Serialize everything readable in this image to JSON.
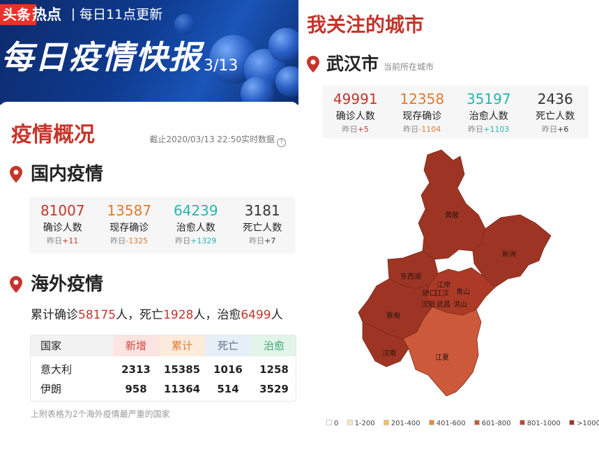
{
  "header": {
    "brand_logo": "头条",
    "brand_name": "热点",
    "tagline": "每日11点更新",
    "banner_title": "每日疫情快报",
    "date": "3/13"
  },
  "overview": {
    "title": "疫情概况",
    "note": "截止2020/03/13 22:50实时数据",
    "help_glyph": "?"
  },
  "domestic": {
    "title": "国内疫情",
    "stats": [
      {
        "value": "81007",
        "label": "确诊人数",
        "yesterday_prefix": "昨日",
        "delta": "+11",
        "color": "#c4352b"
      },
      {
        "value": "13587",
        "label": "现存确诊",
        "yesterday_prefix": "昨日",
        "delta": "-1325",
        "color": "#e07a2f"
      },
      {
        "value": "64239",
        "label": "治愈人数",
        "yesterday_prefix": "昨日",
        "delta": "+1329",
        "color": "#26b5b0"
      },
      {
        "value": "3181",
        "label": "死亡人数",
        "yesterday_prefix": "昨日",
        "delta": "+7",
        "color": "#333333"
      }
    ]
  },
  "overseas": {
    "title": "海外疫情",
    "line": {
      "p1": "累计确诊",
      "confirmed": "58175",
      "p2": "人，死亡",
      "deaths": "1928",
      "p3": "人，治愈",
      "cured": "6499",
      "p4": "人"
    },
    "table": {
      "headers": [
        "国家",
        "新增",
        "累计",
        "死亡",
        "治愈"
      ],
      "rows": [
        {
          "country": "意大利",
          "new": "2313",
          "total": "15385",
          "deaths": "1016",
          "cured": "1258"
        },
        {
          "country": "伊朗",
          "new": "958",
          "total": "11364",
          "deaths": "514",
          "cured": "3529"
        }
      ]
    },
    "note": "上附表格为2个海外疫情最严重的国家"
  },
  "city": {
    "section_title": "我关注的城市",
    "name": "武汉市",
    "subtitle": "当前所在城市",
    "stats": [
      {
        "value": "49991",
        "label": "确诊人数",
        "yesterday_prefix": "昨日",
        "delta": "+5",
        "color": "#c4352b"
      },
      {
        "value": "12358",
        "label": "现存确诊",
        "yesterday_prefix": "昨日",
        "delta": "-1104",
        "color": "#e07a2f"
      },
      {
        "value": "35197",
        "label": "治愈人数",
        "yesterday_prefix": "昨日",
        "delta": "+1103",
        "color": "#26b5b0"
      },
      {
        "value": "2436",
        "label": "死亡人数",
        "yesterday_prefix": "昨日",
        "delta": "+6",
        "color": "#333333"
      }
    ]
  },
  "map": {
    "districts": [
      "黄陂",
      "新洲",
      "东西湖",
      "江岸",
      "硚口",
      "江汉",
      "青山",
      "汉阳",
      "武昌",
      "洪山",
      "蔡甸",
      "汉南",
      "江夏"
    ],
    "legend": [
      {
        "label": "0",
        "color": "#ffffff"
      },
      {
        "label": "1-200",
        "color": "#fbeab8"
      },
      {
        "label": "201-400",
        "color": "#f6c14a"
      },
      {
        "label": "401-600",
        "color": "#ec8a2e"
      },
      {
        "label": "601-800",
        "color": "#d2532f"
      },
      {
        "label": "801-1000",
        "color": "#c0432e"
      },
      {
        "label": ">1000",
        "color": "#9e3524"
      }
    ],
    "colors": {
      "dark": "#9e3524",
      "mid": "#ac3a27",
      "light": "#cc5a3a"
    }
  },
  "colors": {
    "accent": "#c4352b",
    "orange": "#e07a2f",
    "teal": "#26b5b0",
    "banner": "#0e3b8f"
  }
}
